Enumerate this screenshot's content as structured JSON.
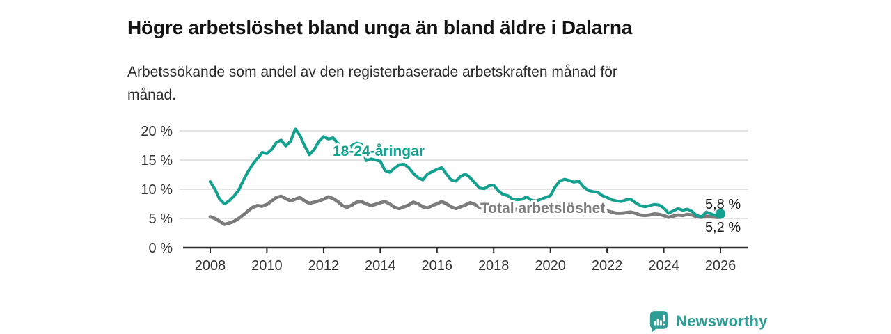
{
  "header": {
    "title": "Högre arbetslöshet bland unga än bland äldre i Dalarna",
    "subtitle": "Arbetssökande som andel av den registerbaserade arbetskraften månad för\nmånad."
  },
  "footer": {
    "brand": "Newsworthy",
    "logo_icon": "bar-chart-speech-bubble-icon",
    "brand_color": "#2d9d96"
  },
  "colors": {
    "young_line": "#14a18f",
    "total_line": "#7c7c7c",
    "axis": "#2e2e2e",
    "grid": "#d9d9d9",
    "tick_text": "#333333",
    "end_label_text": "#1a1a1a",
    "background": "#ffffff"
  },
  "chart_data": {
    "type": "line",
    "title": "Högre arbetslöshet bland unga än bland äldre i Dalarna",
    "subtitle": "Arbetssökande som andel av den registerbaserade arbetskraften månad för månad.",
    "unit": "%",
    "grid": true,
    "legend": "inline-labels",
    "x_start": 2008,
    "x_step_years": 0.166667,
    "x_end": 2026,
    "x_ticks": [
      2008,
      2010,
      2012,
      2014,
      2016,
      2018,
      2020,
      2022,
      2024,
      2026
    ],
    "y_ticks": [
      {
        "value": 0,
        "label": "0 %"
      },
      {
        "value": 5,
        "label": "5 %"
      },
      {
        "value": 10,
        "label": "10 %"
      },
      {
        "value": 15,
        "label": "15 %"
      },
      {
        "value": 20,
        "label": "20 %"
      }
    ],
    "ylim": [
      0,
      21.5
    ],
    "style": {
      "grid_color": "#d9d9d9",
      "axis_color": "#2e2e2e",
      "tick_text_color": "#333333",
      "end_label_color": "#1a1a1a",
      "label_halo_color": "#ffffff"
    },
    "series": [
      {
        "name": "Total arbetslöshet",
        "color": "#7c7c7c",
        "line_width": 4.8,
        "end_label": "5,2 %",
        "end_dot": false,
        "values": [
          5.3,
          5,
          4.5,
          4,
          4.2,
          4.5,
          5,
          5.6,
          6.3,
          6.9,
          7.2,
          7.1,
          7.4,
          8,
          8.6,
          8.8,
          8.4,
          8,
          8.3,
          8.6,
          8,
          7.6,
          7.8,
          8,
          8.3,
          8.7,
          8.4,
          7.9,
          7.2,
          6.9,
          7.3,
          7.8,
          7.9,
          7.5,
          7.2,
          7.4,
          7.7,
          7.9,
          7.5,
          6.9,
          6.7,
          7,
          7.3,
          7.8,
          7.5,
          7,
          6.8,
          7.2,
          7.5,
          7.9,
          7.5,
          7,
          6.7,
          7,
          7.3,
          7.7,
          7.4,
          6.9,
          6.6,
          6.9,
          7.2,
          7.5,
          7.1,
          6.6,
          6.4,
          6.6,
          6.9,
          7.1,
          6.8,
          6.4,
          6.5,
          6.7,
          6.7,
          7.2,
          7.6,
          7.7,
          7.5,
          7.3,
          7.4,
          7.2,
          6.9,
          6.6,
          6.5,
          6.4,
          6.3,
          6.1,
          5.9,
          5.9,
          6,
          6.1,
          5.9,
          5.6,
          5.5,
          5.6,
          5.8,
          5.7,
          5.5,
          5.2,
          5.4,
          5.6,
          5.5,
          5.7,
          5.6,
          5.3,
          5.2,
          5.4,
          5.3,
          5.2,
          5.2
        ]
      },
      {
        "name": "18-24-åringar",
        "color": "#14a18f",
        "line_width": 4.2,
        "end_label": "5,8 %",
        "end_dot": true,
        "values": [
          11.3,
          10,
          8.3,
          7.5,
          8,
          8.8,
          9.8,
          11.5,
          13,
          14.3,
          15.3,
          16.3,
          16.1,
          16.8,
          18,
          18.4,
          17.4,
          18.2,
          20.3,
          19.2,
          17.4,
          15.9,
          16.8,
          18.2,
          19,
          18.6,
          18.8,
          17.9,
          16.3,
          16.6,
          17.5,
          17.9,
          17.7,
          14.9,
          15.2,
          15,
          14.8,
          13.2,
          12.9,
          13.6,
          14.2,
          14.3,
          13.7,
          12.7,
          12,
          11.6,
          12.6,
          13,
          13.4,
          13.7,
          12.6,
          11.6,
          11.4,
          12.2,
          12.6,
          12,
          11.1,
          10.2,
          10.1,
          10.6,
          10.7,
          9.7,
          9.1,
          8.9,
          8.3,
          8.2,
          8.3,
          8.7,
          8.1,
          8,
          8.3,
          8.6,
          8.9,
          10.4,
          11.4,
          11.7,
          11.5,
          11.2,
          11.4,
          10.4,
          9.8,
          9.6,
          9.5,
          8.9,
          8.6,
          8.2,
          8,
          7.9,
          8.2,
          8.3,
          7.7,
          7.2,
          7,
          7.2,
          7.4,
          7.3,
          6.8,
          5.9,
          6.3,
          6.7,
          6.4,
          6.6,
          6.2,
          5.5,
          5.3,
          6.1,
          5.8,
          5.5,
          5.8
        ]
      }
    ]
  }
}
